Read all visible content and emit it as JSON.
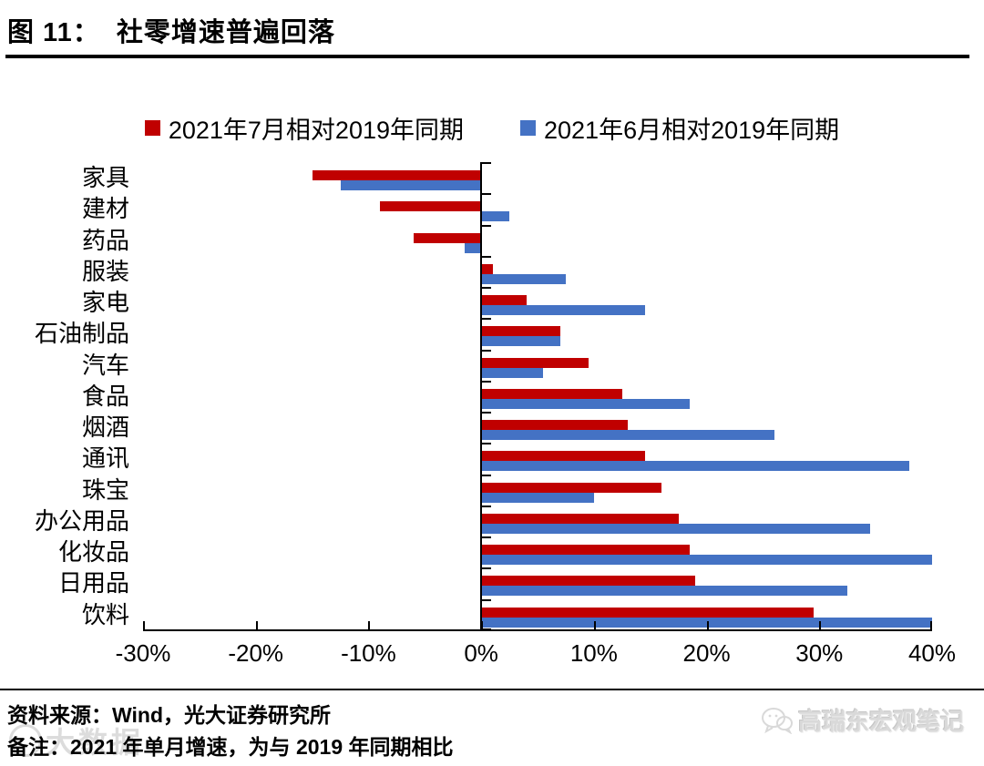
{
  "header": {
    "title": "图 11：  社零增速普遍回落"
  },
  "legend": [
    {
      "label": "2021年7月相对2019年同期",
      "color": "#C00000"
    },
    {
      "label": "2021年6月相对2019年同期",
      "color": "#4472C4"
    }
  ],
  "chart_data": {
    "type": "bar",
    "orientation": "horizontal",
    "title": "社零增速普遍回落",
    "categories": [
      "家具",
      "建材",
      "药品",
      "服装",
      "家电",
      "石油制品",
      "汽车",
      "食品",
      "烟酒",
      "通讯",
      "珠宝",
      "办公用品",
      "化妆品",
      "日用品",
      "饮料"
    ],
    "series": [
      {
        "name": "2021年7月相对2019年同期",
        "color": "#C00000",
        "values": [
          -15,
          -9,
          -6,
          1,
          4,
          7,
          9.5,
          12.5,
          13,
          14.5,
          16,
          17.5,
          18.5,
          19,
          29.5
        ]
      },
      {
        "name": "2021年6月相对2019年同期",
        "color": "#4472C4",
        "values": [
          -12.5,
          2.5,
          -1.5,
          7.5,
          14.5,
          7,
          5.5,
          18.5,
          26,
          38,
          10,
          34.5,
          40,
          32.5,
          40
        ]
      }
    ],
    "xlim": [
      -30,
      40
    ],
    "x_ticks": [
      "-30%",
      "-20%",
      "-10%",
      "0%",
      "10%",
      "20%",
      "30%",
      "40%"
    ],
    "x_tick_values": [
      -30,
      -20,
      -10,
      0,
      10,
      20,
      30,
      40
    ],
    "unit": "%",
    "grid": false,
    "legend_position": "top"
  },
  "footer": {
    "source": "资料来源：Wind，光大证券研究所",
    "note": "备注：2021 年单月增速，为与 2019 年同期相比"
  },
  "watermarks": {
    "right": "高瑞东宏观笔记",
    "left": "大数据"
  }
}
